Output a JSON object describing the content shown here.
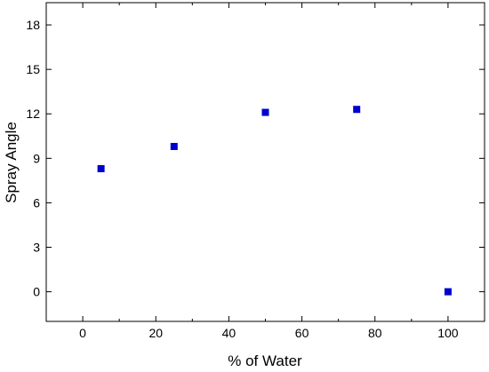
{
  "chart_data": {
    "type": "scatter",
    "xlabel": "% of Water",
    "ylabel": "Spray Angle",
    "xlim": [
      -10,
      110
    ],
    "ylim": [
      -2,
      19.5
    ],
    "x_ticks": [
      0,
      20,
      40,
      60,
      80,
      100
    ],
    "y_ticks": [
      0,
      3,
      6,
      9,
      12,
      15,
      18
    ],
    "x_minor_ticks": [
      10,
      30,
      50,
      70,
      90
    ],
    "grid": false,
    "marker_color": "#0000cc",
    "series": [
      {
        "x": [
          5,
          25,
          50,
          75,
          100
        ],
        "y": [
          8.3,
          9.8,
          12.1,
          12.3,
          0.0
        ]
      }
    ]
  }
}
